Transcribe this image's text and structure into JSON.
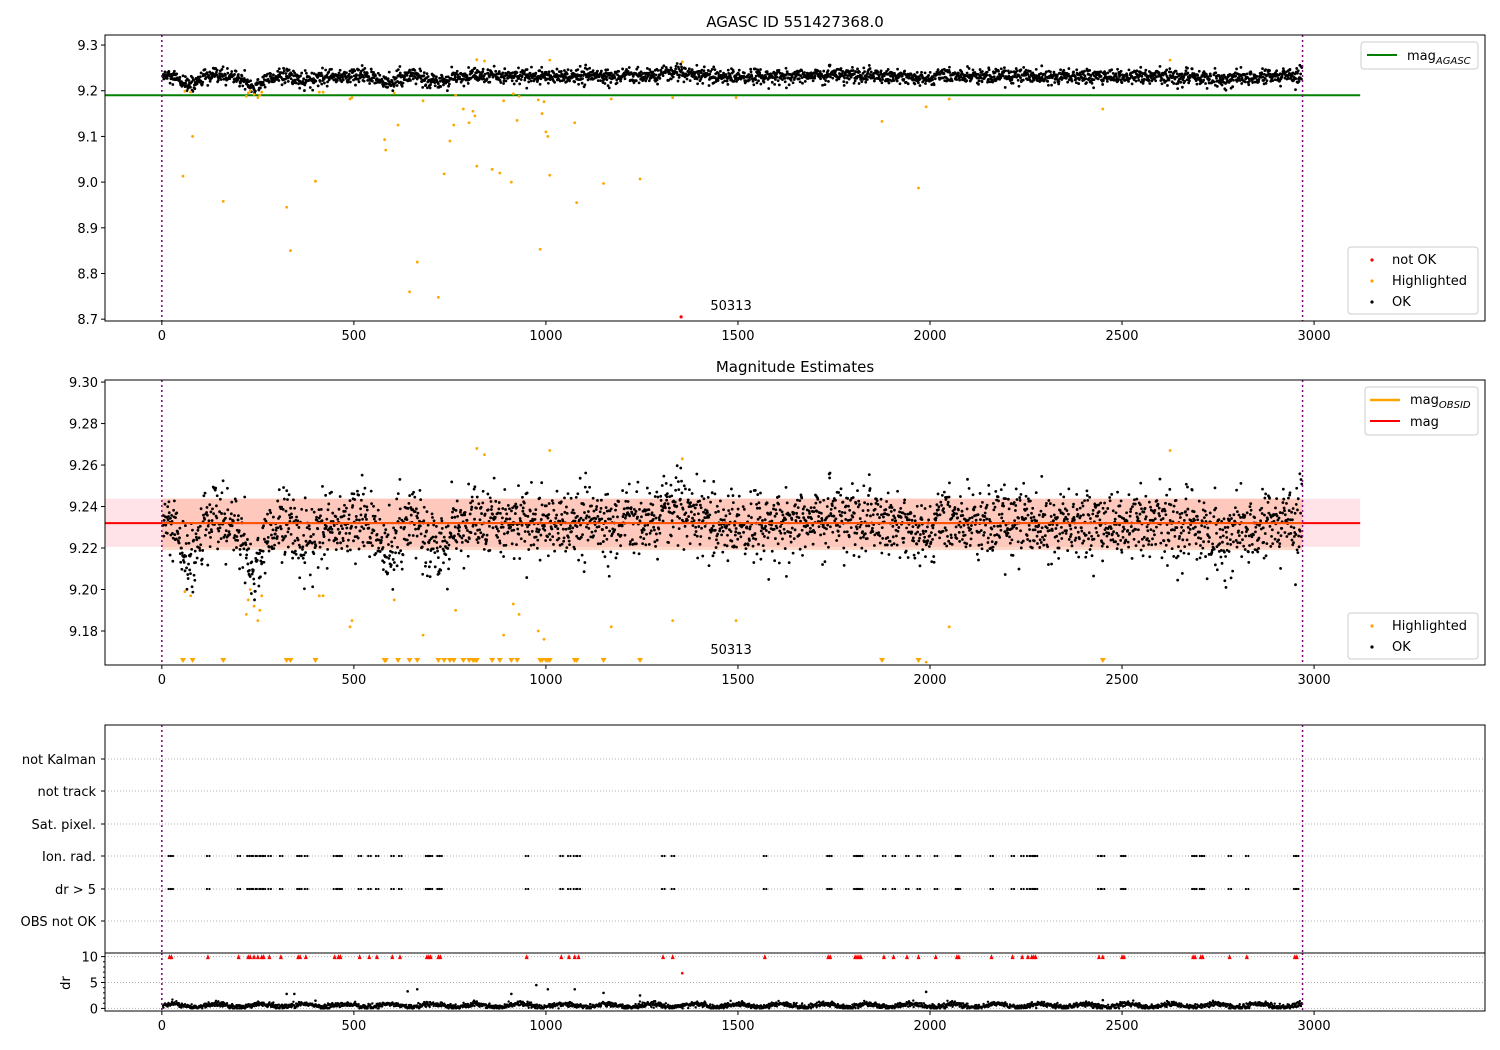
{
  "chart_data": [
    {
      "type": "scatter",
      "title": "AGASC ID 551427368.0",
      "xlim": [
        -148,
        3445
      ],
      "ylim": [
        8.696,
        9.322
      ],
      "xticks": [
        0,
        500,
        1000,
        1500,
        2000,
        2500,
        3000
      ],
      "yticks": [
        8.7,
        8.8,
        8.9,
        9.0,
        9.1,
        9.2,
        9.3
      ],
      "ytick_labels": [
        "8.7",
        "8.8",
        "8.9",
        "9.0",
        "9.1",
        "9.2",
        "9.3"
      ],
      "mag_agasc": 9.19,
      "mag_agasc_xrange": [
        -148,
        3120
      ],
      "obs_boundaries": [
        0,
        2970
      ],
      "obsid_label": "50313",
      "obsid_label_pos": [
        1482,
        8.72
      ],
      "legend_upper": {
        "position": "top-right",
        "label_main": "mag",
        "label_sub": "AGASC"
      },
      "legend_lower": {
        "position": "bottom-right",
        "entries": [
          "not OK",
          "Highlighted",
          "OK"
        ]
      },
      "not_ok": [
        [
          1352,
          8.705
        ]
      ]
    },
    {
      "type": "scatter",
      "title": "Magnitude Estimates",
      "xlim": [
        -148,
        3445
      ],
      "ylim": [
        9.1636,
        9.301
      ],
      "xticks": [
        0,
        500,
        1000,
        1500,
        2000,
        2500,
        3000
      ],
      "yticks": [
        9.18,
        9.2,
        9.22,
        9.24,
        9.26,
        9.28,
        9.3
      ],
      "ytick_labels": [
        "9.18",
        "9.20",
        "9.22",
        "9.24",
        "9.26",
        "9.28",
        "9.30"
      ],
      "mag": 9.232,
      "mag_band": [
        9.2205,
        9.2438
      ],
      "mag_obsid": 9.232,
      "mag_obsid_band": [
        9.219,
        9.2438
      ],
      "obsid_label": "50313",
      "obsid_label_pos": [
        1482,
        9.167
      ],
      "legend_upper": {
        "position": "top-right",
        "entries": [
          {
            "main": "mag",
            "sub": "OBSID"
          },
          {
            "main": "mag",
            "sub": ""
          }
        ]
      },
      "legend_lower": {
        "position": "bottom-right",
        "entries": [
          "Highlighted",
          "OK"
        ]
      }
    },
    {
      "type": "scatter",
      "title": "",
      "flag_rows": [
        "not Kalman",
        "not track",
        "Sat. pixel.",
        "Ion. rad.",
        "dr > 5",
        "OBS not OK"
      ],
      "flagged_rows": [
        "Ion. rad.",
        "dr > 5"
      ],
      "flag_x": [
        20,
        25,
        120,
        200,
        225,
        230,
        240,
        250,
        260,
        265,
        280,
        310,
        355,
        360,
        375,
        450,
        460,
        465,
        515,
        540,
        560,
        600,
        620,
        690,
        695,
        700,
        720,
        725,
        950,
        1040,
        1060,
        1075,
        1085,
        1305,
        1330,
        1570,
        1735,
        1740,
        1805,
        1810,
        1815,
        1820,
        1880,
        1905,
        1940,
        1970,
        2015,
        2070,
        2075,
        2160,
        2215,
        2240,
        2255,
        2265,
        2270,
        2275,
        2440,
        2450,
        2500,
        2505,
        2685,
        2690,
        2705,
        2710,
        2780,
        2825,
        2950,
        2955
      ],
      "ylabel": "dr",
      "dr_ylim": [
        -0.5,
        10.7
      ],
      "dr_yticks": [
        0,
        5,
        10
      ],
      "dr_ytick_labels": [
        "0",
        "5",
        "10"
      ],
      "dr_clip": 10,
      "dr_outliers": [
        [
          325,
          2.8
        ],
        [
          345,
          2.8
        ],
        [
          400,
          1.5
        ],
        [
          640,
          3.3
        ],
        [
          665,
          3.7
        ],
        [
          910,
          2.8
        ],
        [
          975,
          4.5
        ],
        [
          1005,
          3.7
        ],
        [
          1075,
          3.7
        ],
        [
          1150,
          3.0
        ],
        [
          1245,
          2.5
        ],
        [
          1355,
          6.8
        ],
        [
          1990,
          3.2
        ],
        [
          2450,
          1.6
        ]
      ],
      "dr_typical": [
        0.1,
        1.2
      ]
    }
  ],
  "ok_series": {
    "count": 2900,
    "x_range": [
      3,
      2968
    ],
    "mean": 9.232,
    "std": 0.0085,
    "trend_features": [
      [
        70,
        -0.018,
        25
      ],
      [
        240,
        -0.022,
        22
      ],
      [
        380,
        -0.01,
        30
      ],
      [
        590,
        -0.014,
        20
      ],
      [
        720,
        -0.01,
        30
      ],
      [
        1340,
        0.008,
        30
      ],
      [
        1750,
        0.005,
        40
      ],
      [
        1980,
        -0.008,
        20
      ],
      [
        2750,
        -0.008,
        30
      ]
    ]
  },
  "highlighted": [
    [
      55,
      9.013
    ],
    [
      80,
      9.1
    ],
    [
      160,
      8.958
    ],
    [
      325,
      8.945
    ],
    [
      335,
      8.85
    ],
    [
      400,
      9.002
    ],
    [
      580,
      9.093
    ],
    [
      583,
      9.07
    ],
    [
      615,
      9.125
    ],
    [
      645,
      8.76
    ],
    [
      665,
      8.825
    ],
    [
      720,
      8.748
    ],
    [
      735,
      9.018
    ],
    [
      750,
      9.09
    ],
    [
      760,
      9.125
    ],
    [
      785,
      9.16
    ],
    [
      800,
      9.13
    ],
    [
      810,
      9.155
    ],
    [
      815,
      9.145
    ],
    [
      820,
      9.035
    ],
    [
      860,
      9.028
    ],
    [
      880,
      9.02
    ],
    [
      910,
      9.0
    ],
    [
      925,
      9.135
    ],
    [
      980,
      9.18
    ],
    [
      985,
      8.853
    ],
    [
      990,
      9.15
    ],
    [
      1000,
      9.11
    ],
    [
      1005,
      9.1
    ],
    [
      1010,
      9.015
    ],
    [
      1075,
      9.13
    ],
    [
      1080,
      8.955
    ],
    [
      1150,
      8.997
    ],
    [
      1245,
      9.007
    ],
    [
      1875,
      9.133
    ],
    [
      1970,
      8.987
    ],
    [
      1990,
      9.165
    ],
    [
      2450,
      9.16
    ],
    [
      60,
      9.199
    ],
    [
      75,
      9.197
    ],
    [
      220,
      9.188
    ],
    [
      225,
      9.195
    ],
    [
      230,
      9.2
    ],
    [
      240,
      9.192
    ],
    [
      250,
      9.185
    ],
    [
      255,
      9.19
    ],
    [
      260,
      9.197
    ],
    [
      410,
      9.197
    ],
    [
      420,
      9.197
    ],
    [
      490,
      9.182
    ],
    [
      495,
      9.185
    ],
    [
      605,
      9.195
    ],
    [
      680,
      9.178
    ],
    [
      765,
      9.19
    ],
    [
      890,
      9.178
    ],
    [
      915,
      9.193
    ],
    [
      930,
      9.188
    ],
    [
      995,
      9.176
    ],
    [
      1010,
      9.267
    ],
    [
      1170,
      9.182
    ],
    [
      1330,
      9.185
    ],
    [
      1355,
      9.263
    ],
    [
      820,
      9.268
    ],
    [
      840,
      9.265
    ],
    [
      1495,
      9.185
    ],
    [
      2050,
      9.182
    ],
    [
      2625,
      9.267
    ]
  ],
  "colors": {
    "ok": "#000000",
    "highlighted": "#ffa500",
    "not_ok": "#ff0000",
    "agasc": "#008000",
    "mag": "#ff0000",
    "obsid": "#ffa500",
    "boundary": "#800080",
    "band_mag": "#ffc0cb",
    "band_obsid": "#ffa07a"
  }
}
